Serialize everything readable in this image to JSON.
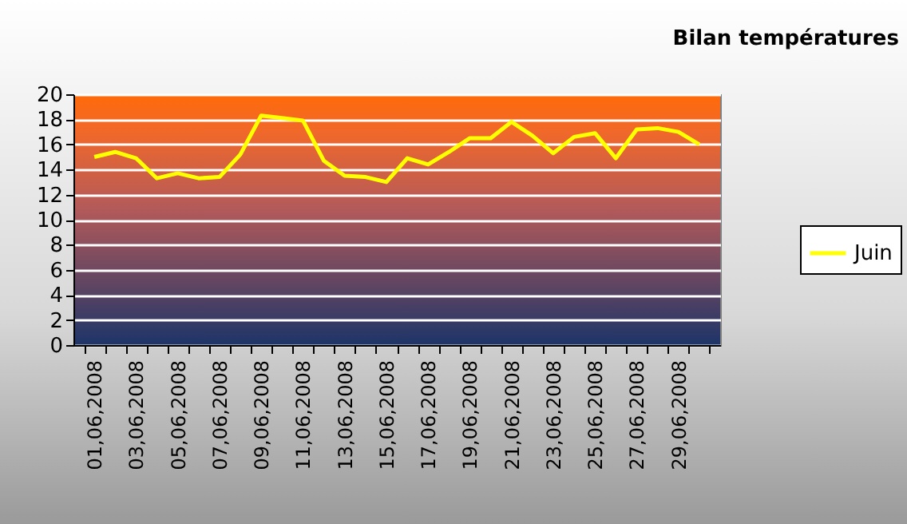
{
  "chart_data": {
    "type": "line",
    "title": "Bilan températures",
    "categories": [
      "01,06,2008",
      null,
      "03,06,2008",
      null,
      "05,06,2008",
      null,
      "07,06,2008",
      null,
      "09,06,2008",
      null,
      "11,06,2008",
      null,
      "13,06,2008",
      null,
      "15,06,2008",
      null,
      "17,06,2008",
      null,
      "19,06,2008",
      null,
      "21,06,2008",
      null,
      "23,06,2008",
      null,
      "25,06,2008",
      null,
      "27,06,2008",
      null,
      "29,06,2008",
      null
    ],
    "series": [
      {
        "name": "Juin",
        "color": "#ffff00",
        "values": [
          15.0,
          15.4,
          14.9,
          13.3,
          13.7,
          13.3,
          13.4,
          15.2,
          18.3,
          18.1,
          17.9,
          14.7,
          13.5,
          13.4,
          13.0,
          14.9,
          14.4,
          15.4,
          16.5,
          16.5,
          17.8,
          16.7,
          15.3,
          16.6,
          16.9,
          14.9,
          17.2,
          17.3,
          17.0,
          16.0
        ]
      }
    ],
    "ylim": [
      0,
      20
    ],
    "yticks": [
      0,
      2,
      4,
      6,
      8,
      10,
      12,
      14,
      16,
      18,
      20
    ],
    "grid": "y",
    "legend": "right",
    "marker": "none",
    "line_style": "solid"
  }
}
